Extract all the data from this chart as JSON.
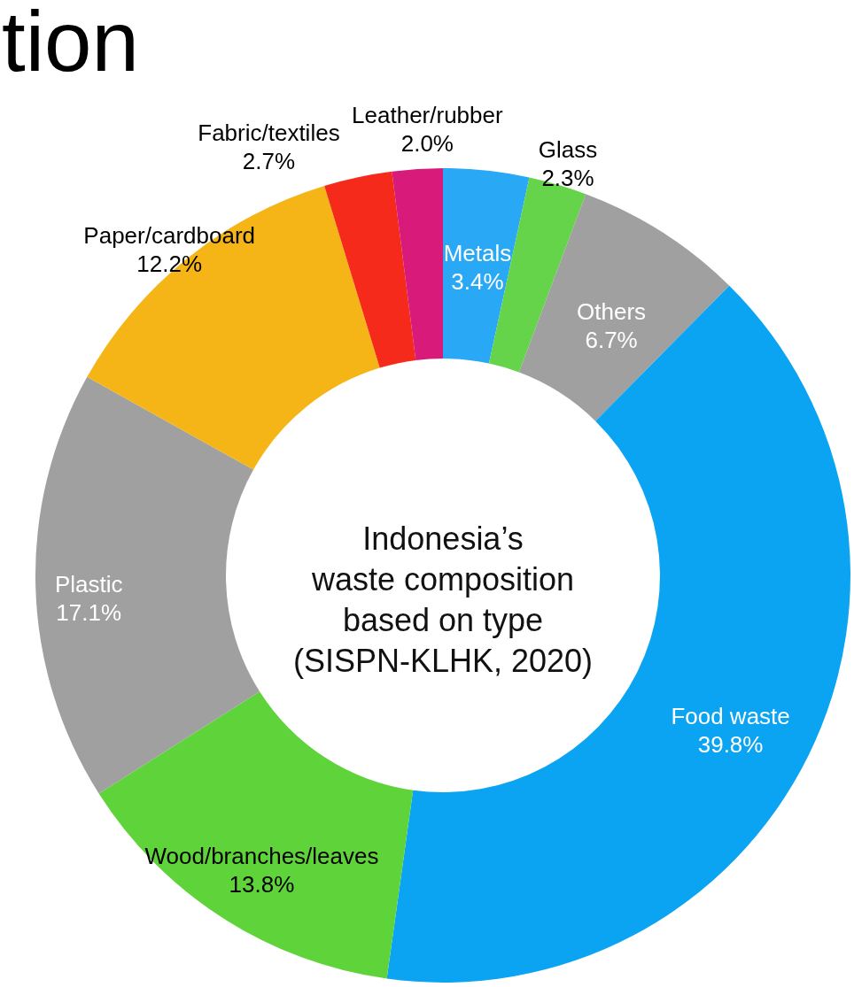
{
  "chart_data": {
    "type": "donut",
    "title": "tion",
    "categories": [
      "Metals",
      "Glass",
      "Others",
      "Food waste",
      "Wood/branches/leaves",
      "Plastic",
      "Paper/cardboard",
      "Fabric/textiles",
      "Leather/rubber"
    ],
    "values": [
      3.4,
      2.3,
      6.7,
      39.8,
      13.8,
      17.1,
      12.2,
      2.7,
      2.0
    ],
    "value_labels": [
      "3.4%",
      "2.3%",
      "6.7%",
      "39.8%",
      "13.8%",
      "17.1%",
      "12.2%",
      "2.7%",
      "2.0%"
    ],
    "colors": [
      "#29a8f5",
      "#66d44a",
      "#a0a0a0",
      "#0aa4f2",
      "#5fd43a",
      "#a0a0a0",
      "#f5b516",
      "#f52a1a",
      "#d81b7a"
    ],
    "annotations": [
      "Indonesia’s\nwaste composition\nbased on type\n(SISPN-KLHK, 2020)"
    ]
  }
}
